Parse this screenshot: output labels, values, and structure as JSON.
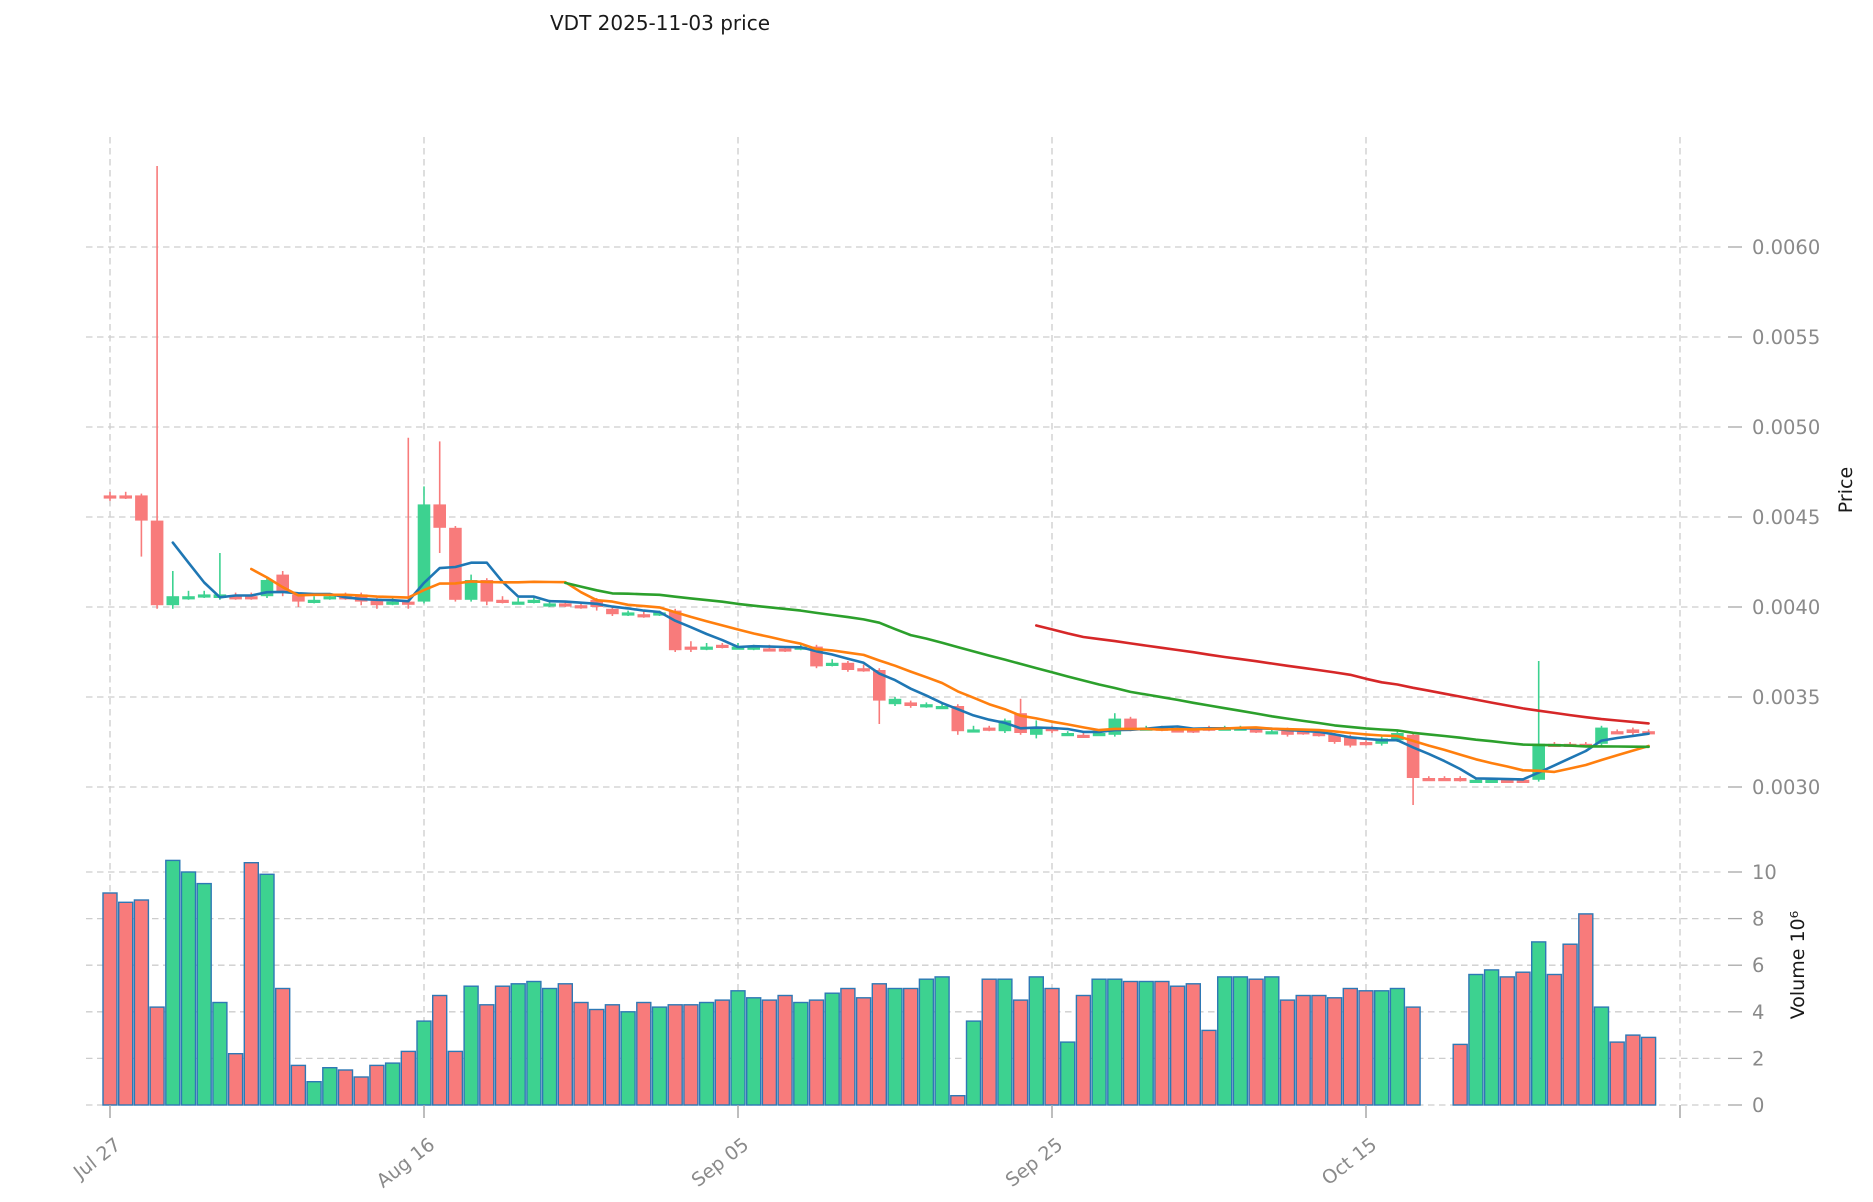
{
  "title": "VDT  2025-11-03  price",
  "axes": {
    "price_label": "Price",
    "volume_label": "Volume  10⁶"
  },
  "chart_data": {
    "type": "candlestick",
    "title": "VDT  2025-11-03  price",
    "ylabel": "Price",
    "ylabel_volume": "Volume  10⁶",
    "legend": "none",
    "grid": "dashed",
    "x_tick_labels": [
      "Jul 27",
      "Aug 16",
      "Sep 05",
      "Sep 25",
      "Oct 15"
    ],
    "x_tick_indices": [
      0,
      20,
      40,
      60,
      80
    ],
    "unlabeled_gridline_index": 100,
    "price_tick_labels": [
      "0.0030",
      "0.0035",
      "0.0040",
      "0.0045",
      "0.0050",
      "0.0055",
      "0.0060"
    ],
    "price_ticks": [
      0.003,
      0.0035,
      0.004,
      0.0045,
      0.005,
      0.0055,
      0.006
    ],
    "price_range": [
      0.0028,
      0.0066
    ],
    "volume_ticks": [
      0,
      2,
      4,
      6,
      8,
      10
    ],
    "volume_unit": 1000000,
    "moving_average_windows": [
      5,
      10,
      30,
      60
    ],
    "colors": {
      "up": "#3dd290",
      "down": "#f87b7b",
      "volume_edge": "#2e78b5",
      "ma5": "#1f77b4",
      "ma10": "#ff7f0e",
      "ma30": "#2ca02c",
      "ma60": "#d62728",
      "grid": "#cdcdcd",
      "tick_text": "#8a8a8a",
      "title_text": "#1a1a1a"
    },
    "candles_format": [
      "open",
      "high",
      "low",
      "close",
      "volume_millions",
      "up_flag"
    ],
    "candles": [
      [
        0.00462,
        0.00464,
        0.00459,
        0.00462,
        9.1,
        0
      ],
      [
        0.00462,
        0.00464,
        0.0046,
        0.00462,
        8.7,
        0
      ],
      [
        0.00462,
        0.00463,
        0.00428,
        0.00448,
        8.8,
        0
      ],
      [
        0.00448,
        0.00645,
        0.00399,
        0.00401,
        4.2,
        0
      ],
      [
        0.00401,
        0.0042,
        0.00399,
        0.00406,
        10.5,
        1
      ],
      [
        0.00406,
        0.00409,
        0.00404,
        0.00406,
        10.0,
        1
      ],
      [
        0.00407,
        0.00409,
        0.00405,
        0.00407,
        9.5,
        1
      ],
      [
        0.00405,
        0.0043,
        0.00404,
        0.00407,
        4.4,
        1
      ],
      [
        0.00406,
        0.00408,
        0.00404,
        0.00406,
        2.2,
        0
      ],
      [
        0.00406,
        0.00408,
        0.00404,
        0.00406,
        10.4,
        0
      ],
      [
        0.00406,
        0.00416,
        0.00405,
        0.00415,
        9.9,
        1
      ],
      [
        0.00418,
        0.0042,
        0.00406,
        0.00408,
        5.0,
        0
      ],
      [
        0.00407,
        0.00408,
        0.004,
        0.00403,
        1.7,
        0
      ],
      [
        0.00404,
        0.00406,
        0.00402,
        0.00404,
        1.0,
        1
      ],
      [
        0.00406,
        0.00407,
        0.00404,
        0.00406,
        1.6,
        1
      ],
      [
        0.00406,
        0.00408,
        0.00404,
        0.00406,
        1.5,
        0
      ],
      [
        0.00407,
        0.00408,
        0.00401,
        0.00403,
        1.2,
        0
      ],
      [
        0.00404,
        0.00405,
        0.00399,
        0.00401,
        1.7,
        0
      ],
      [
        0.00403,
        0.00405,
        0.00401,
        0.00403,
        1.8,
        1
      ],
      [
        0.00403,
        0.00494,
        0.00399,
        0.00403,
        2.3,
        0
      ],
      [
        0.00403,
        0.00467,
        0.00402,
        0.00457,
        3.6,
        1
      ],
      [
        0.00457,
        0.00492,
        0.0043,
        0.00444,
        4.7,
        0
      ],
      [
        0.00444,
        0.00445,
        0.00403,
        0.00404,
        2.3,
        0
      ],
      [
        0.00404,
        0.00418,
        0.00403,
        0.00415,
        5.1,
        1
      ],
      [
        0.00415,
        0.00416,
        0.00401,
        0.00403,
        4.3,
        0
      ],
      [
        0.00404,
        0.00406,
        0.00402,
        0.00404,
        5.1,
        0
      ],
      [
        0.00403,
        0.00405,
        0.00402,
        0.00403,
        5.2,
        1
      ],
      [
        0.00404,
        0.00406,
        0.00402,
        0.00404,
        5.3,
        1
      ],
      [
        0.00402,
        0.00404,
        0.004,
        0.00402,
        5.0,
        1
      ],
      [
        0.00402,
        0.00403,
        0.004,
        0.00402,
        5.2,
        0
      ],
      [
        0.00401,
        0.00403,
        0.00399,
        0.00401,
        4.4,
        0
      ],
      [
        0.00404,
        0.00405,
        0.00398,
        0.004,
        4.1,
        0
      ],
      [
        0.00399,
        0.004,
        0.00395,
        0.00396,
        4.3,
        0
      ],
      [
        0.00397,
        0.00398,
        0.00395,
        0.00397,
        4.0,
        1
      ],
      [
        0.00396,
        0.00398,
        0.00394,
        0.00396,
        4.4,
        0
      ],
      [
        0.00397,
        0.00398,
        0.00395,
        0.00397,
        4.2,
        1
      ],
      [
        0.00398,
        0.00399,
        0.00375,
        0.00376,
        4.3,
        0
      ],
      [
        0.00378,
        0.00381,
        0.00375,
        0.00378,
        4.3,
        0
      ],
      [
        0.00378,
        0.0038,
        0.00376,
        0.00378,
        4.4,
        1
      ],
      [
        0.00379,
        0.0038,
        0.00377,
        0.00379,
        4.5,
        0
      ],
      [
        0.00378,
        0.0038,
        0.00377,
        0.00378,
        4.9,
        1
      ],
      [
        0.00378,
        0.00379,
        0.00376,
        0.00378,
        4.6,
        1
      ],
      [
        0.00377,
        0.00379,
        0.00376,
        0.00377,
        4.5,
        0
      ],
      [
        0.00377,
        0.00378,
        0.00375,
        0.00377,
        4.7,
        0
      ],
      [
        0.00378,
        0.00379,
        0.00376,
        0.00378,
        4.4,
        1
      ],
      [
        0.00378,
        0.00379,
        0.00366,
        0.00367,
        4.5,
        0
      ],
      [
        0.00369,
        0.00371,
        0.00367,
        0.00369,
        4.8,
        1
      ],
      [
        0.00369,
        0.0037,
        0.00364,
        0.00365,
        5.0,
        0
      ],
      [
        0.00366,
        0.00368,
        0.00364,
        0.00366,
        4.6,
        0
      ],
      [
        0.00365,
        0.00366,
        0.00335,
        0.00348,
        5.2,
        0
      ],
      [
        0.00346,
        0.0035,
        0.00345,
        0.00349,
        5.0,
        1
      ],
      [
        0.00347,
        0.00348,
        0.00344,
        0.00345,
        5.0,
        0
      ],
      [
        0.00346,
        0.00347,
        0.00344,
        0.00346,
        5.4,
        1
      ],
      [
        0.00345,
        0.00347,
        0.00344,
        0.00345,
        5.5,
        1
      ],
      [
        0.00345,
        0.00346,
        0.00329,
        0.00331,
        0.4,
        0
      ],
      [
        0.00332,
        0.00334,
        0.00331,
        0.00332,
        3.6,
        1
      ],
      [
        0.00333,
        0.00334,
        0.00331,
        0.00333,
        5.4,
        0
      ],
      [
        0.00331,
        0.00338,
        0.0033,
        0.00337,
        5.4,
        1
      ],
      [
        0.00341,
        0.00349,
        0.00329,
        0.0033,
        4.5,
        0
      ],
      [
        0.00329,
        0.00337,
        0.00327,
        0.00333,
        5.5,
        1
      ],
      [
        0.00333,
        0.00334,
        0.0033,
        0.00331,
        5.0,
        0
      ],
      [
        0.0033,
        0.00331,
        0.00329,
        0.0033,
        2.7,
        1
      ],
      [
        0.00329,
        0.00331,
        0.00328,
        0.00329,
        4.7,
        0
      ],
      [
        0.0033,
        0.00331,
        0.00329,
        0.0033,
        5.4,
        1
      ],
      [
        0.00329,
        0.00341,
        0.00328,
        0.00338,
        5.4,
        1
      ],
      [
        0.00338,
        0.00339,
        0.00331,
        0.00332,
        5.3,
        0
      ],
      [
        0.00333,
        0.00334,
        0.00332,
        0.00333,
        5.3,
        1
      ],
      [
        0.00333,
        0.00334,
        0.00331,
        0.00333,
        5.3,
        0
      ],
      [
        0.00332,
        0.00333,
        0.00331,
        0.00332,
        5.1,
        0
      ],
      [
        0.00332,
        0.00333,
        0.0033,
        0.00332,
        5.2,
        0
      ],
      [
        0.00333,
        0.00334,
        0.00331,
        0.00333,
        3.2,
        0
      ],
      [
        0.00333,
        0.00334,
        0.00332,
        0.00333,
        5.5,
        1
      ],
      [
        0.00333,
        0.00334,
        0.00332,
        0.00333,
        5.5,
        1
      ],
      [
        0.00332,
        0.00333,
        0.0033,
        0.00332,
        5.4,
        0
      ],
      [
        0.00331,
        0.00332,
        0.0033,
        0.00331,
        5.5,
        1
      ],
      [
        0.00332,
        0.00333,
        0.00328,
        0.00329,
        4.5,
        0
      ],
      [
        0.00331,
        0.00332,
        0.00329,
        0.00331,
        4.7,
        0
      ],
      [
        0.0033,
        0.00331,
        0.00328,
        0.0033,
        4.7,
        0
      ],
      [
        0.00329,
        0.0033,
        0.00324,
        0.00325,
        4.6,
        0
      ],
      [
        0.00328,
        0.00329,
        0.00322,
        0.00323,
        5.0,
        0
      ],
      [
        0.00325,
        0.00326,
        0.00323,
        0.00325,
        4.9,
        0
      ],
      [
        0.00324,
        0.00328,
        0.00323,
        0.00327,
        4.9,
        1
      ],
      [
        0.00326,
        0.00331,
        0.00325,
        0.0033,
        5.0,
        1
      ],
      [
        0.00329,
        0.0033,
        0.0029,
        0.00305,
        4.2,
        0
      ],
      [
        0.00305,
        0.00306,
        0.00304,
        0.00305,
        0.0,
        0
      ],
      [
        0.00305,
        0.00306,
        0.00304,
        0.00305,
        0.0,
        0
      ],
      [
        0.00305,
        0.00306,
        0.00303,
        0.00305,
        2.6,
        0
      ],
      [
        0.00304,
        0.00305,
        0.00303,
        0.00304,
        5.6,
        1
      ],
      [
        0.00304,
        0.00305,
        0.00303,
        0.00304,
        5.8,
        1
      ],
      [
        0.00304,
        0.00305,
        0.00303,
        0.00304,
        5.5,
        0
      ],
      [
        0.00304,
        0.00305,
        0.00303,
        0.00304,
        5.7,
        0
      ],
      [
        0.00304,
        0.0037,
        0.00303,
        0.00324,
        7.0,
        1
      ],
      [
        0.00324,
        0.00325,
        0.00323,
        0.00324,
        5.6,
        0
      ],
      [
        0.00324,
        0.00325,
        0.00323,
        0.00324,
        6.9,
        0
      ],
      [
        0.00324,
        0.00325,
        0.00322,
        0.00324,
        8.2,
        0
      ],
      [
        0.00324,
        0.00334,
        0.00323,
        0.00333,
        4.2,
        1
      ],
      [
        0.00331,
        0.00332,
        0.0033,
        0.00331,
        2.7,
        0
      ],
      [
        0.00332,
        0.00333,
        0.00329,
        0.0033,
        3.0,
        0
      ],
      [
        0.00331,
        0.00332,
        0.00329,
        0.0033,
        2.9,
        0
      ]
    ]
  }
}
